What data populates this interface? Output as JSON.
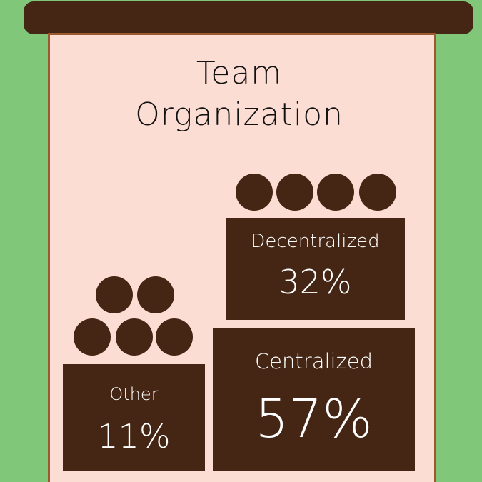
{
  "title_lines": [
    "Team",
    "Organization"
  ],
  "colors": {
    "background": "#80c77a",
    "panel": "#fcddd4",
    "panel_border": "#9a5a2d",
    "box": "#452614",
    "box_text": "#ffffff"
  },
  "chart_data": {
    "type": "bar",
    "title": "Team Organization",
    "categories": [
      "Other",
      "Centralized",
      "Decentralized"
    ],
    "values": [
      11,
      57,
      32
    ],
    "labels": [
      "11%",
      "57%",
      "32%"
    ],
    "unit": "%",
    "icon": "circle-stack-icon",
    "circle_counts": [
      5,
      0,
      4
    ]
  }
}
